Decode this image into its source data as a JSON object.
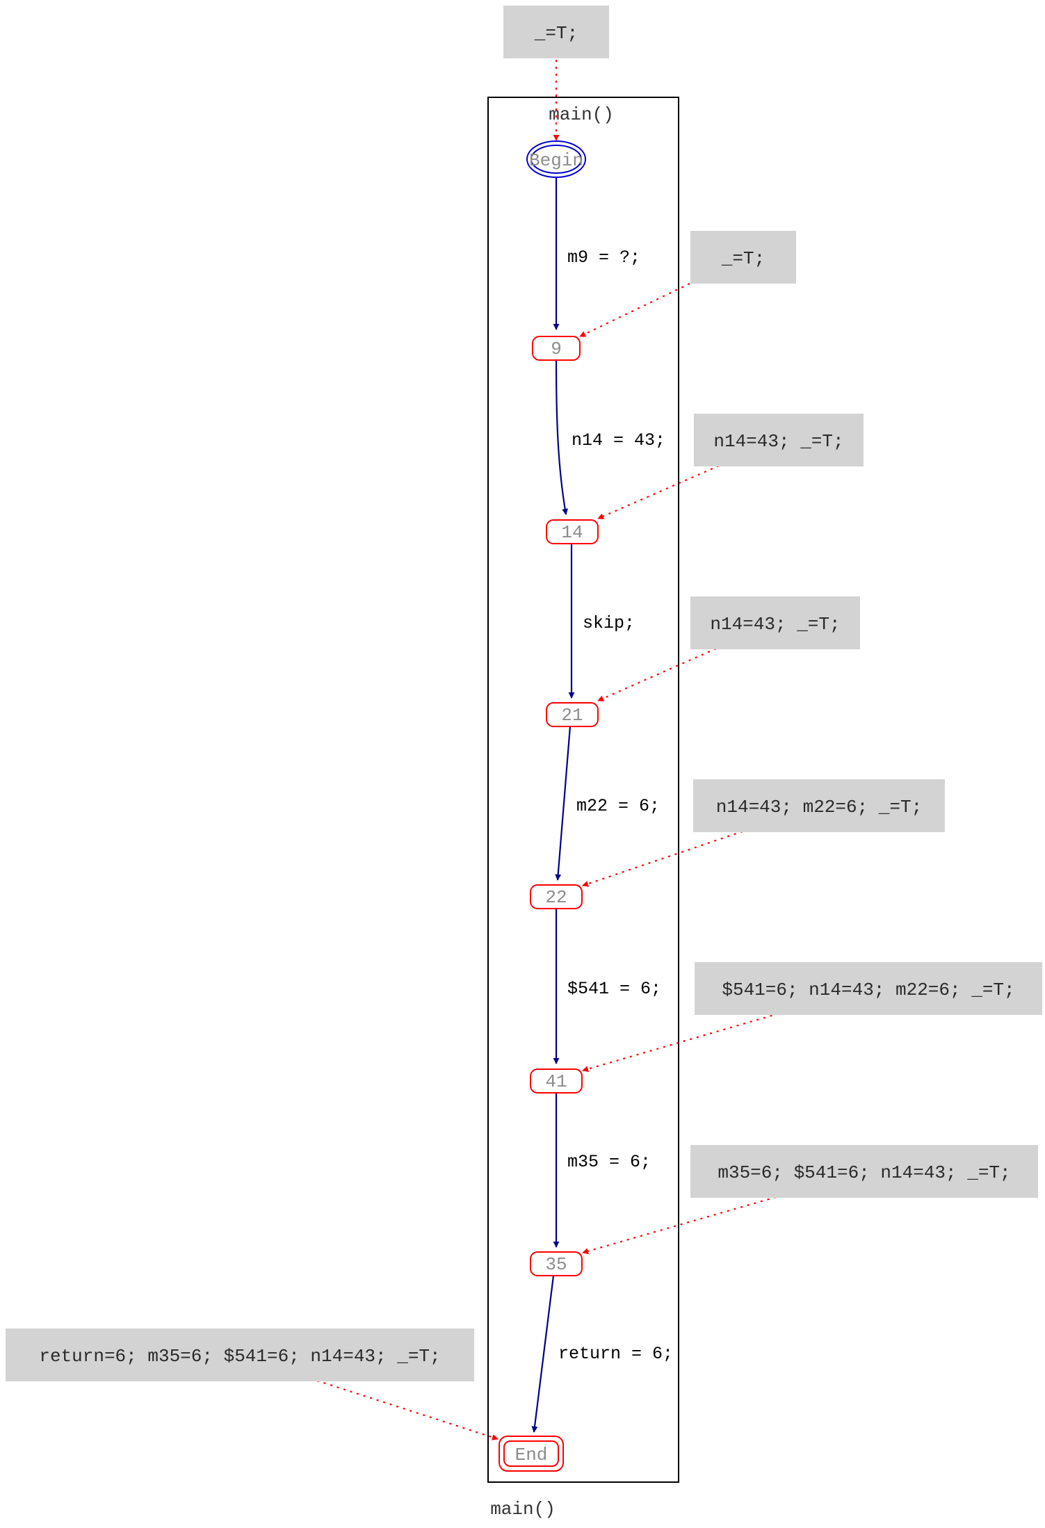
{
  "graph": {
    "label": "main()",
    "cluster_label": "main()"
  },
  "nodes": {
    "begin": "Begin",
    "n9": "9",
    "n14": "14",
    "n21": "21",
    "n22": "22",
    "n41": "41",
    "n35": "35",
    "end": "End"
  },
  "edges": {
    "e1": "m9 = ?;",
    "e2": "n14 = 43;",
    "e3": "skip;",
    "e4": "m22 = 6;",
    "e5": "$541 = 6;",
    "e6": "m35 = 6;",
    "e7": "return = 6;"
  },
  "annotations": {
    "a0": "_=T;",
    "a1": "_=T;",
    "a2": "n14=43; _=T;",
    "a3": "n14=43; _=T;",
    "a4": "n14=43; m22=6; _=T;",
    "a5": "$541=6; n14=43; m22=6; _=T;",
    "a6": "m35=6; $541=6; n14=43; _=T;",
    "a7": "return=6; m35=6; $541=6; n14=43; _=T;"
  },
  "colors": {
    "flow_edge": "#00008b",
    "annotation_edge": "#ff0000",
    "node_border": "#ff0000",
    "begin_border": "#0000cd",
    "annotation_fill": "#d3d3d3",
    "cluster_border": "#000000"
  }
}
